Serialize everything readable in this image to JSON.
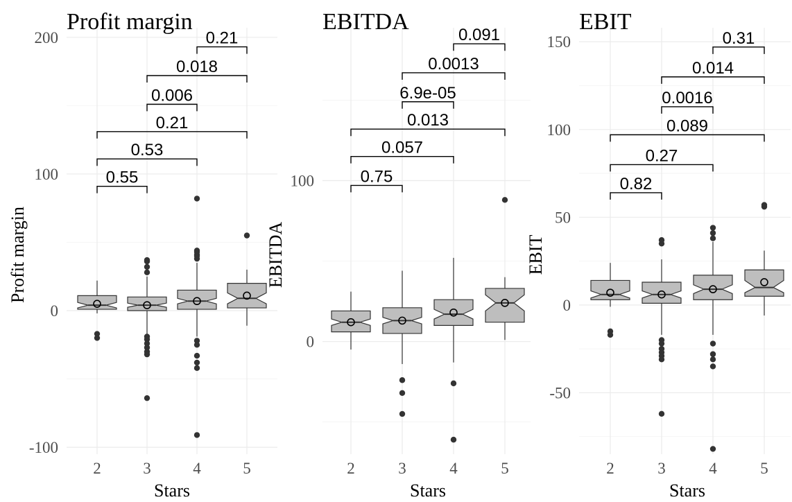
{
  "chart_data": [
    {
      "type": "boxplot",
      "title": "Profit margin",
      "xlabel": "Stars",
      "ylabel": "Profit margin",
      "categories": [
        "2",
        "3",
        "4",
        "5"
      ],
      "y_ticks": [
        -100,
        0,
        100,
        200
      ],
      "y_tick_labels": [
        "-100",
        "0",
        "100",
        "200"
      ],
      "ylim": [
        -105,
        207
      ],
      "grid": true,
      "boxes": [
        {
          "category": "2",
          "whisker_low": -2,
          "q1": 1,
          "median": 4,
          "q3": 11,
          "whisker_high": 22,
          "notch_low": 2,
          "notch_high": 6,
          "mean": 5,
          "outliers": [
            -17,
            -20
          ]
        },
        {
          "category": "3",
          "whisker_low": -17,
          "q1": 0,
          "median": 4,
          "q3": 10,
          "whisker_high": 25,
          "notch_low": 2.5,
          "notch_high": 5.5,
          "mean": 4,
          "outliers": [
            -19,
            -21,
            -24,
            -27,
            -30,
            -32,
            -64,
            28,
            36,
            37,
            32
          ]
        },
        {
          "category": "4",
          "whisker_low": -19,
          "q1": 1,
          "median": 7,
          "q3": 15,
          "whisker_high": 35,
          "notch_low": 5,
          "notch_high": 9,
          "mean": 7,
          "outliers": [
            -22,
            -25,
            -33,
            -38,
            -42,
            -91,
            38,
            41,
            44,
            82,
            43,
            40
          ]
        },
        {
          "category": "5",
          "whisker_low": -11,
          "q1": 2,
          "median": 9,
          "q3": 20,
          "whisker_high": 30,
          "notch_low": 5,
          "notch_high": 13,
          "mean": 11,
          "outliers": [
            55
          ]
        }
      ],
      "comparisons": [
        {
          "from": "2",
          "to": "3",
          "label": "0.55",
          "y": 91
        },
        {
          "from": "2",
          "to": "4",
          "label": "0.53",
          "y": 111
        },
        {
          "from": "2",
          "to": "5",
          "label": "0.21",
          "y": 131
        },
        {
          "from": "3",
          "to": "4",
          "label": "0.006",
          "y": 151
        },
        {
          "from": "3",
          "to": "5",
          "label": "0.018",
          "y": 172
        },
        {
          "from": "4",
          "to": "5",
          "label": "0.21",
          "y": 193
        }
      ]
    },
    {
      "type": "boxplot",
      "title": "EBITDA",
      "xlabel": "Stars",
      "ylabel": "EBITDA",
      "categories": [
        "2",
        "3",
        "4",
        "5"
      ],
      "y_ticks": [
        0,
        100
      ],
      "y_tick_labels": [
        "0",
        "100"
      ],
      "ylim": [
        -70,
        195
      ],
      "grid": true,
      "boxes": [
        {
          "category": "2",
          "whisker_low": -5,
          "q1": 6,
          "median": 12,
          "q3": 19,
          "whisker_high": 31,
          "notch_low": 10,
          "notch_high": 14,
          "mean": 12,
          "outliers": []
        },
        {
          "category": "3",
          "whisker_low": -14,
          "q1": 5,
          "median": 13,
          "q3": 21,
          "whisker_high": 44,
          "notch_low": 11,
          "notch_high": 15,
          "mean": 13,
          "outliers": [
            -24,
            -32,
            -45
          ]
        },
        {
          "category": "4",
          "whisker_low": -13,
          "q1": 10,
          "median": 17,
          "q3": 26,
          "whisker_high": 52,
          "notch_low": 14,
          "notch_high": 20,
          "mean": 18,
          "outliers": [
            -26,
            -61
          ]
        },
        {
          "category": "5",
          "whisker_low": 1,
          "q1": 12,
          "median": 24,
          "q3": 33,
          "whisker_high": 40,
          "notch_low": 19,
          "notch_high": 29,
          "mean": 24,
          "outliers": [
            88
          ]
        }
      ],
      "comparisons": [
        {
          "from": "2",
          "to": "3",
          "label": "0.75",
          "y": 97
        },
        {
          "from": "2",
          "to": "4",
          "label": "0.057",
          "y": 115
        },
        {
          "from": "2",
          "to": "5",
          "label": "0.013",
          "y": 132
        },
        {
          "from": "3",
          "to": "4",
          "label": "6.9e-05",
          "y": 149
        },
        {
          "from": "3",
          "to": "5",
          "label": "0.0013",
          "y": 167
        },
        {
          "from": "4",
          "to": "5",
          "label": "0.091",
          "y": 185
        }
      ]
    },
    {
      "type": "boxplot",
      "title": "EBIT",
      "xlabel": "Stars",
      "ylabel": "EBIT",
      "categories": [
        "2",
        "3",
        "4",
        "5"
      ],
      "y_ticks": [
        -50,
        0,
        50,
        100,
        150
      ],
      "y_tick_labels": [
        "-50",
        "0",
        "50",
        "100",
        "150"
      ],
      "ylim": [
        -85,
        158
      ],
      "grid": true,
      "boxes": [
        {
          "category": "2",
          "whisker_low": -1,
          "q1": 3,
          "median": 6,
          "q3": 14,
          "whisker_high": 24,
          "notch_low": 4,
          "notch_high": 8,
          "mean": 7,
          "outliers": [
            -15,
            -17
          ]
        },
        {
          "category": "3",
          "whisker_low": -17,
          "q1": 1,
          "median": 6,
          "q3": 13,
          "whisker_high": 26,
          "notch_low": 4,
          "notch_high": 8,
          "mean": 6,
          "outliers": [
            -20,
            -22,
            -25,
            -27,
            -29,
            -31,
            -62,
            35,
            37
          ]
        },
        {
          "category": "4",
          "whisker_low": -17,
          "q1": 3,
          "median": 9,
          "q3": 17,
          "whisker_high": 36,
          "notch_low": 6.5,
          "notch_high": 11.5,
          "mean": 9,
          "outliers": [
            -22,
            -28,
            -31,
            -35,
            -82,
            38,
            41,
            44
          ]
        },
        {
          "category": "5",
          "whisker_low": -6,
          "q1": 5,
          "median": 10,
          "q3": 20,
          "whisker_high": 31,
          "notch_low": 7,
          "notch_high": 14,
          "mean": 13,
          "outliers": [
            56,
            57
          ]
        }
      ],
      "comparisons": [
        {
          "from": "2",
          "to": "3",
          "label": "0.82",
          "y": 64
        },
        {
          "from": "2",
          "to": "4",
          "label": "0.27",
          "y": 80
        },
        {
          "from": "2",
          "to": "5",
          "label": "0.089",
          "y": 97
        },
        {
          "from": "3",
          "to": "4",
          "label": "0.0016",
          "y": 113
        },
        {
          "from": "3",
          "to": "5",
          "label": "0.014",
          "y": 130
        },
        {
          "from": "4",
          "to": "5",
          "label": "0.31",
          "y": 147
        }
      ]
    }
  ]
}
